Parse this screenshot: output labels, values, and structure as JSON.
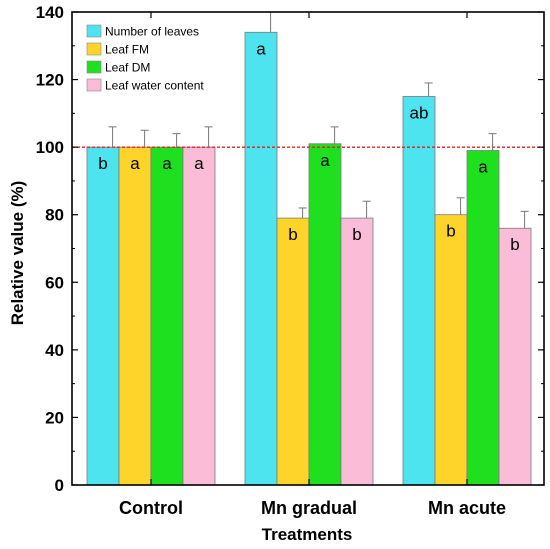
{
  "chart_data": {
    "type": "bar",
    "categories": [
      "Control",
      "Mn gradual",
      "Mn acute"
    ],
    "xlabel": "Treatments",
    "ylabel": "Relative value (%)",
    "ylim": [
      0,
      140
    ],
    "yticks": [
      0,
      20,
      40,
      60,
      80,
      100,
      120,
      140
    ],
    "reference_line": {
      "value": 100,
      "color": "#dd2222",
      "style": "dotted"
    },
    "legend_position": "top-left",
    "grid": false,
    "series": [
      {
        "name": "Number of leaves",
        "color": "#4de3ef",
        "values": [
          100,
          134,
          115
        ],
        "errors": [
          6,
          6,
          4
        ],
        "labels": [
          "b",
          "a",
          "ab"
        ]
      },
      {
        "name": "Leaf FM",
        "color": "#ffd42a",
        "values": [
          100,
          79,
          80
        ],
        "errors": [
          5,
          3,
          5
        ],
        "labels": [
          "a",
          "b",
          "b"
        ]
      },
      {
        "name": "Leaf DM",
        "color": "#1ee01e",
        "values": [
          100,
          101,
          99
        ],
        "errors": [
          4,
          5,
          5
        ],
        "labels": [
          "a",
          "a",
          "a"
        ]
      },
      {
        "name": "Leaf water content",
        "color": "#fbbcd8",
        "values": [
          100,
          79,
          76
        ],
        "errors": [
          6,
          5,
          5
        ],
        "labels": [
          "a",
          "b",
          "b"
        ]
      }
    ]
  }
}
